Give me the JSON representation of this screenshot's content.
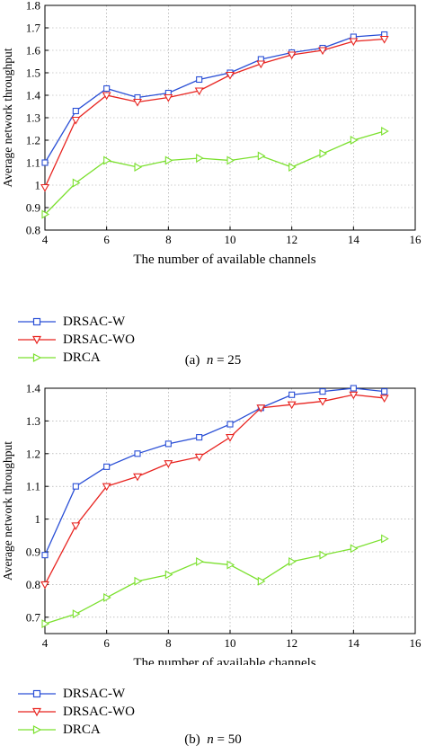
{
  "colors": {
    "DRSAC-W": "#2a4fd6",
    "DRSAC-WO": "#e8231f",
    "DRCA": "#7be02e"
  },
  "chart_data": [
    {
      "type": "line",
      "xlabel": "The number of available channels",
      "ylabel": "Average network throughput",
      "xlim": [
        4,
        16
      ],
      "ylim": [
        0.8,
        1.8
      ],
      "xticks": [
        4,
        6,
        8,
        10,
        12,
        14,
        16
      ],
      "yticks": [
        0.8,
        0.9,
        1,
        1.1,
        1.2,
        1.3,
        1.4,
        1.5,
        1.6,
        1.7,
        1.8
      ],
      "grid": true,
      "caption": {
        "label": "(a)",
        "variable": "n",
        "value": "= 25"
      },
      "x": [
        4,
        5,
        6,
        7,
        8,
        9,
        10,
        11,
        12,
        13,
        14,
        15
      ],
      "series": [
        {
          "name": "DRSAC-W",
          "marker": "square",
          "values": [
            1.1,
            1.33,
            1.43,
            1.39,
            1.41,
            1.47,
            1.5,
            1.56,
            1.59,
            1.61,
            1.66,
            1.67
          ]
        },
        {
          "name": "DRSAC-WO",
          "marker": "triangle-down",
          "values": [
            0.99,
            1.29,
            1.4,
            1.37,
            1.39,
            1.42,
            1.49,
            1.54,
            1.58,
            1.6,
            1.64,
            1.65
          ]
        },
        {
          "name": "DRCA",
          "marker": "triangle-right",
          "values": [
            0.87,
            1.01,
            1.11,
            1.08,
            1.11,
            1.12,
            1.11,
            1.13,
            1.08,
            1.14,
            1.2,
            1.24
          ]
        }
      ]
    },
    {
      "type": "line",
      "xlabel": "The number of available channels",
      "ylabel": "Average network throughput",
      "xlim": [
        4,
        16
      ],
      "ylim": [
        0.65,
        1.4
      ],
      "xticks": [
        4,
        6,
        8,
        10,
        12,
        14,
        16
      ],
      "yticks": [
        0.7,
        0.8,
        0.9,
        1,
        1.1,
        1.2,
        1.3,
        1.4
      ],
      "grid": true,
      "caption": {
        "label": "(b)",
        "variable": "n",
        "value": "= 50"
      },
      "x": [
        4,
        5,
        6,
        7,
        8,
        9,
        10,
        11,
        12,
        13,
        14,
        15
      ],
      "series": [
        {
          "name": "DRSAC-W",
          "marker": "square",
          "values": [
            0.89,
            1.1,
            1.16,
            1.2,
            1.23,
            1.25,
            1.29,
            1.34,
            1.38,
            1.39,
            1.4,
            1.39
          ]
        },
        {
          "name": "DRSAC-WO",
          "marker": "triangle-down",
          "values": [
            0.8,
            0.98,
            1.1,
            1.13,
            1.17,
            1.19,
            1.25,
            1.34,
            1.35,
            1.36,
            1.38,
            1.37
          ]
        },
        {
          "name": "DRCA",
          "marker": "triangle-right",
          "values": [
            0.68,
            0.71,
            0.76,
            0.81,
            0.83,
            0.87,
            0.86,
            0.81,
            0.87,
            0.89,
            0.91,
            0.94
          ]
        }
      ]
    }
  ]
}
